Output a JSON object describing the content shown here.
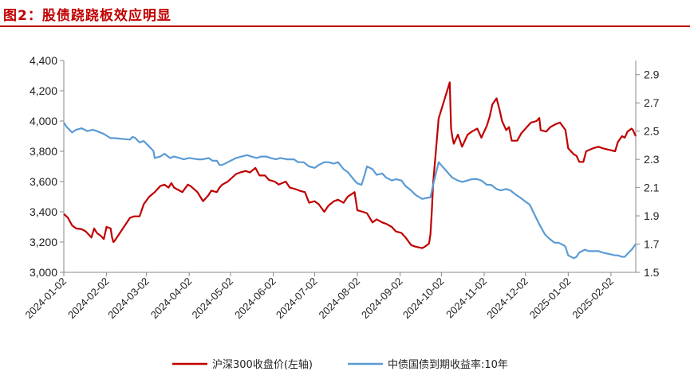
{
  "figure": {
    "title": "图2：股债跷跷板效应明显"
  },
  "chart_data": {
    "type": "line",
    "title": "图2：股债跷跷板效应明显",
    "x_ticks": [
      "2024-01-02",
      "2024-02-02",
      "2024-03-02",
      "2024-04-02",
      "2024-05-02",
      "2024-06-02",
      "2024-07-02",
      "2024-08-02",
      "2024-09-02",
      "2024-10-02",
      "2024-11-02",
      "2024-12-02",
      "2025-01-02",
      "2025-02-02"
    ],
    "x_range": [
      "2024-01-02",
      "2025-02-20"
    ],
    "y_left": {
      "range": [
        3000,
        4400
      ],
      "ticks": [
        "3,000",
        "3,200",
        "3,400",
        "3,600",
        "3,800",
        "4,000",
        "4,200",
        "4,400"
      ],
      "tick_values": [
        3000,
        3200,
        3400,
        3600,
        3800,
        4000,
        4200,
        4400
      ]
    },
    "y_right": {
      "range": [
        1.5,
        3.0
      ],
      "ticks": [
        "1.5",
        "1.7",
        "1.9",
        "2.1",
        "2.3",
        "2.5",
        "2.7",
        "2.9"
      ],
      "tick_values": [
        1.5,
        1.7,
        1.9,
        2.1,
        2.3,
        2.5,
        2.7,
        2.9
      ]
    },
    "grid": false,
    "legend_position": "bottom",
    "series": [
      {
        "name": "沪深300收盘价(左轴)",
        "axis": "left",
        "color": "#c00000",
        "points": [
          [
            "2024-01-02",
            3386
          ],
          [
            "2024-01-05",
            3360
          ],
          [
            "2024-01-08",
            3310
          ],
          [
            "2024-01-11",
            3290
          ],
          [
            "2024-01-15",
            3285
          ],
          [
            "2024-01-18",
            3270
          ],
          [
            "2024-01-22",
            3230
          ],
          [
            "2024-01-24",
            3290
          ],
          [
            "2024-01-26",
            3260
          ],
          [
            "2024-01-29",
            3240
          ],
          [
            "2024-01-31",
            3220
          ],
          [
            "2024-02-02",
            3300
          ],
          [
            "2024-02-05",
            3290
          ],
          [
            "2024-02-06",
            3230
          ],
          [
            "2024-02-07",
            3200
          ],
          [
            "2024-02-08",
            3210
          ],
          [
            "2024-02-19",
            3360
          ],
          [
            "2024-02-22",
            3370
          ],
          [
            "2024-02-26",
            3370
          ],
          [
            "2024-02-29",
            3450
          ],
          [
            "2024-03-04",
            3500
          ],
          [
            "2024-03-08",
            3530
          ],
          [
            "2024-03-12",
            3570
          ],
          [
            "2024-03-15",
            3580
          ],
          [
            "2024-03-18",
            3560
          ],
          [
            "2024-03-20",
            3590
          ],
          [
            "2024-03-22",
            3560
          ],
          [
            "2024-03-26",
            3540
          ],
          [
            "2024-03-28",
            3530
          ],
          [
            "2024-04-01",
            3580
          ],
          [
            "2024-04-03",
            3570
          ],
          [
            "2024-04-08",
            3530
          ],
          [
            "2024-04-10",
            3500
          ],
          [
            "2024-04-12",
            3470
          ],
          [
            "2024-04-16",
            3510
          ],
          [
            "2024-04-18",
            3540
          ],
          [
            "2024-04-22",
            3530
          ],
          [
            "2024-04-24",
            3560
          ],
          [
            "2024-04-26",
            3580
          ],
          [
            "2024-04-30",
            3600
          ],
          [
            "2024-05-06",
            3650
          ],
          [
            "2024-05-09",
            3660
          ],
          [
            "2024-05-13",
            3670
          ],
          [
            "2024-05-16",
            3660
          ],
          [
            "2024-05-20",
            3690
          ],
          [
            "2024-05-23",
            3640
          ],
          [
            "2024-05-27",
            3640
          ],
          [
            "2024-05-30",
            3610
          ],
          [
            "2024-06-03",
            3600
          ],
          [
            "2024-06-06",
            3580
          ],
          [
            "2024-06-11",
            3600
          ],
          [
            "2024-06-14",
            3560
          ],
          [
            "2024-06-18",
            3550
          ],
          [
            "2024-06-21",
            3540
          ],
          [
            "2024-06-25",
            3530
          ],
          [
            "2024-06-28",
            3460
          ],
          [
            "2024-07-02",
            3470
          ],
          [
            "2024-07-05",
            3450
          ],
          [
            "2024-07-09",
            3400
          ],
          [
            "2024-07-12",
            3440
          ],
          [
            "2024-07-16",
            3470
          ],
          [
            "2024-07-19",
            3480
          ],
          [
            "2024-07-23",
            3460
          ],
          [
            "2024-07-26",
            3500
          ],
          [
            "2024-07-31",
            3530
          ],
          [
            "2024-08-02",
            3410
          ],
          [
            "2024-08-06",
            3400
          ],
          [
            "2024-08-09",
            3390
          ],
          [
            "2024-08-13",
            3330
          ],
          [
            "2024-08-16",
            3350
          ],
          [
            "2024-08-20",
            3330
          ],
          [
            "2024-08-23",
            3320
          ],
          [
            "2024-08-27",
            3300
          ],
          [
            "2024-08-30",
            3270
          ],
          [
            "2024-09-03",
            3260
          ],
          [
            "2024-09-06",
            3230
          ],
          [
            "2024-09-10",
            3180
          ],
          [
            "2024-09-13",
            3170
          ],
          [
            "2024-09-18",
            3160
          ],
          [
            "2024-09-20",
            3170
          ],
          [
            "2024-09-23",
            3190
          ],
          [
            "2024-09-24",
            3250
          ],
          [
            "2024-09-25",
            3400
          ],
          [
            "2024-09-26",
            3590
          ],
          [
            "2024-09-27",
            3700
          ],
          [
            "2024-09-30",
            4017
          ],
          [
            "2024-10-08",
            4256
          ],
          [
            "2024-10-09",
            3950
          ],
          [
            "2024-10-10",
            3890
          ],
          [
            "2024-10-11",
            3850
          ],
          [
            "2024-10-14",
            3910
          ],
          [
            "2024-10-17",
            3830
          ],
          [
            "2024-10-21",
            3910
          ],
          [
            "2024-10-24",
            3930
          ],
          [
            "2024-10-28",
            3950
          ],
          [
            "2024-10-31",
            3890
          ],
          [
            "2024-11-04",
            3970
          ],
          [
            "2024-11-06",
            4030
          ],
          [
            "2024-11-08",
            4110
          ],
          [
            "2024-11-11",
            4150
          ],
          [
            "2024-11-13",
            4080
          ],
          [
            "2024-11-15",
            4000
          ],
          [
            "2024-11-18",
            3940
          ],
          [
            "2024-11-20",
            3960
          ],
          [
            "2024-11-22",
            3870
          ],
          [
            "2024-11-26",
            3870
          ],
          [
            "2024-11-29",
            3920
          ],
          [
            "2024-12-02",
            3950
          ],
          [
            "2024-12-04",
            3970
          ],
          [
            "2024-12-06",
            3990
          ],
          [
            "2024-12-10",
            4000
          ],
          [
            "2024-12-12",
            4020
          ],
          [
            "2024-12-13",
            3940
          ],
          [
            "2024-12-17",
            3930
          ],
          [
            "2024-12-20",
            3960
          ],
          [
            "2024-12-24",
            3980
          ],
          [
            "2024-12-27",
            3990
          ],
          [
            "2024-12-31",
            3940
          ],
          [
            "2025-01-02",
            3820
          ],
          [
            "2025-01-06",
            3780
          ],
          [
            "2025-01-08",
            3770
          ],
          [
            "2025-01-10",
            3730
          ],
          [
            "2025-01-13",
            3730
          ],
          [
            "2025-01-15",
            3800
          ],
          [
            "2025-01-20",
            3820
          ],
          [
            "2025-01-24",
            3830
          ],
          [
            "2025-01-27",
            3820
          ],
          [
            "2025-02-05",
            3800
          ],
          [
            "2025-02-07",
            3860
          ],
          [
            "2025-02-10",
            3900
          ],
          [
            "2025-02-12",
            3890
          ],
          [
            "2025-02-14",
            3930
          ],
          [
            "2025-02-17",
            3950
          ],
          [
            "2025-02-18",
            3940
          ],
          [
            "2025-02-20",
            3900
          ]
        ]
      },
      {
        "name": "中债国债到期收益率:10年",
        "axis": "right",
        "color": "#5b9bd5",
        "points": [
          [
            "2024-01-02",
            2.56
          ],
          [
            "2024-01-04",
            2.53
          ],
          [
            "2024-01-08",
            2.49
          ],
          [
            "2024-01-11",
            2.51
          ],
          [
            "2024-01-15",
            2.52
          ],
          [
            "2024-01-19",
            2.5
          ],
          [
            "2024-01-23",
            2.51
          ],
          [
            "2024-01-26",
            2.5
          ],
          [
            "2024-01-31",
            2.48
          ],
          [
            "2024-02-05",
            2.45
          ],
          [
            "2024-02-08",
            2.45
          ],
          [
            "2024-02-19",
            2.44
          ],
          [
            "2024-02-21",
            2.46
          ],
          [
            "2024-02-23",
            2.45
          ],
          [
            "2024-02-26",
            2.42
          ],
          [
            "2024-02-29",
            2.43
          ],
          [
            "2024-03-04",
            2.39
          ],
          [
            "2024-03-07",
            2.36
          ],
          [
            "2024-03-08",
            2.31
          ],
          [
            "2024-03-12",
            2.32
          ],
          [
            "2024-03-15",
            2.34
          ],
          [
            "2024-03-19",
            2.31
          ],
          [
            "2024-03-22",
            2.32
          ],
          [
            "2024-03-26",
            2.31
          ],
          [
            "2024-03-29",
            2.3
          ],
          [
            "2024-04-02",
            2.31
          ],
          [
            "2024-04-08",
            2.3
          ],
          [
            "2024-04-12",
            2.3
          ],
          [
            "2024-04-16",
            2.31
          ],
          [
            "2024-04-19",
            2.29
          ],
          [
            "2024-04-22",
            2.29
          ],
          [
            "2024-04-24",
            2.26
          ],
          [
            "2024-04-26",
            2.26
          ],
          [
            "2024-05-06",
            2.31
          ],
          [
            "2024-05-10",
            2.32
          ],
          [
            "2024-05-14",
            2.33
          ],
          [
            "2024-05-17",
            2.32
          ],
          [
            "2024-05-21",
            2.31
          ],
          [
            "2024-05-24",
            2.32
          ],
          [
            "2024-05-28",
            2.32
          ],
          [
            "2024-05-31",
            2.31
          ],
          [
            "2024-06-04",
            2.3
          ],
          [
            "2024-06-07",
            2.31
          ],
          [
            "2024-06-12",
            2.3
          ],
          [
            "2024-06-17",
            2.3
          ],
          [
            "2024-06-20",
            2.28
          ],
          [
            "2024-06-24",
            2.28
          ],
          [
            "2024-06-28",
            2.25
          ],
          [
            "2024-07-02",
            2.24
          ],
          [
            "2024-07-05",
            2.26
          ],
          [
            "2024-07-09",
            2.28
          ],
          [
            "2024-07-12",
            2.28
          ],
          [
            "2024-07-16",
            2.27
          ],
          [
            "2024-07-19",
            2.28
          ],
          [
            "2024-07-23",
            2.23
          ],
          [
            "2024-07-26",
            2.21
          ],
          [
            "2024-07-31",
            2.15
          ],
          [
            "2024-08-02",
            2.13
          ],
          [
            "2024-08-05",
            2.12
          ],
          [
            "2024-08-07",
            2.18
          ],
          [
            "2024-08-09",
            2.25
          ],
          [
            "2024-08-13",
            2.23
          ],
          [
            "2024-08-16",
            2.19
          ],
          [
            "2024-08-20",
            2.2
          ],
          [
            "2024-08-23",
            2.17
          ],
          [
            "2024-08-27",
            2.15
          ],
          [
            "2024-08-30",
            2.16
          ],
          [
            "2024-09-03",
            2.15
          ],
          [
            "2024-09-06",
            2.11
          ],
          [
            "2024-09-10",
            2.08
          ],
          [
            "2024-09-13",
            2.05
          ],
          [
            "2024-09-18",
            2.02
          ],
          [
            "2024-09-23",
            2.03
          ],
          [
            "2024-09-24",
            2.03
          ],
          [
            "2024-09-26",
            2.12
          ],
          [
            "2024-09-30",
            2.28
          ],
          [
            "2024-10-08",
            2.19
          ],
          [
            "2024-10-10",
            2.17
          ],
          [
            "2024-10-14",
            2.15
          ],
          [
            "2024-10-17",
            2.14
          ],
          [
            "2024-10-21",
            2.15
          ],
          [
            "2024-10-24",
            2.16
          ],
          [
            "2024-10-28",
            2.16
          ],
          [
            "2024-10-31",
            2.15
          ],
          [
            "2024-11-04",
            2.12
          ],
          [
            "2024-11-07",
            2.12
          ],
          [
            "2024-11-11",
            2.09
          ],
          [
            "2024-11-14",
            2.08
          ],
          [
            "2024-11-18",
            2.09
          ],
          [
            "2024-11-21",
            2.08
          ],
          [
            "2024-11-25",
            2.05
          ],
          [
            "2024-11-28",
            2.03
          ],
          [
            "2024-12-02",
            2.0
          ],
          [
            "2024-12-05",
            1.98
          ],
          [
            "2024-12-09",
            1.9
          ],
          [
            "2024-12-12",
            1.84
          ],
          [
            "2024-12-16",
            1.77
          ],
          [
            "2024-12-19",
            1.74
          ],
          [
            "2024-12-23",
            1.71
          ],
          [
            "2024-12-26",
            1.71
          ],
          [
            "2024-12-30",
            1.69
          ],
          [
            "2024-12-31",
            1.68
          ],
          [
            "2025-01-02",
            1.62
          ],
          [
            "2025-01-06",
            1.6
          ],
          [
            "2025-01-08",
            1.61
          ],
          [
            "2025-01-10",
            1.64
          ],
          [
            "2025-01-14",
            1.66
          ],
          [
            "2025-01-17",
            1.65
          ],
          [
            "2025-01-21",
            1.65
          ],
          [
            "2025-01-24",
            1.65
          ],
          [
            "2025-01-27",
            1.64
          ],
          [
            "2025-02-05",
            1.62
          ],
          [
            "2025-02-07",
            1.62
          ],
          [
            "2025-02-10",
            1.61
          ],
          [
            "2025-02-12",
            1.61
          ],
          [
            "2025-02-14",
            1.63
          ],
          [
            "2025-02-17",
            1.66
          ],
          [
            "2025-02-20",
            1.7
          ]
        ]
      }
    ]
  }
}
